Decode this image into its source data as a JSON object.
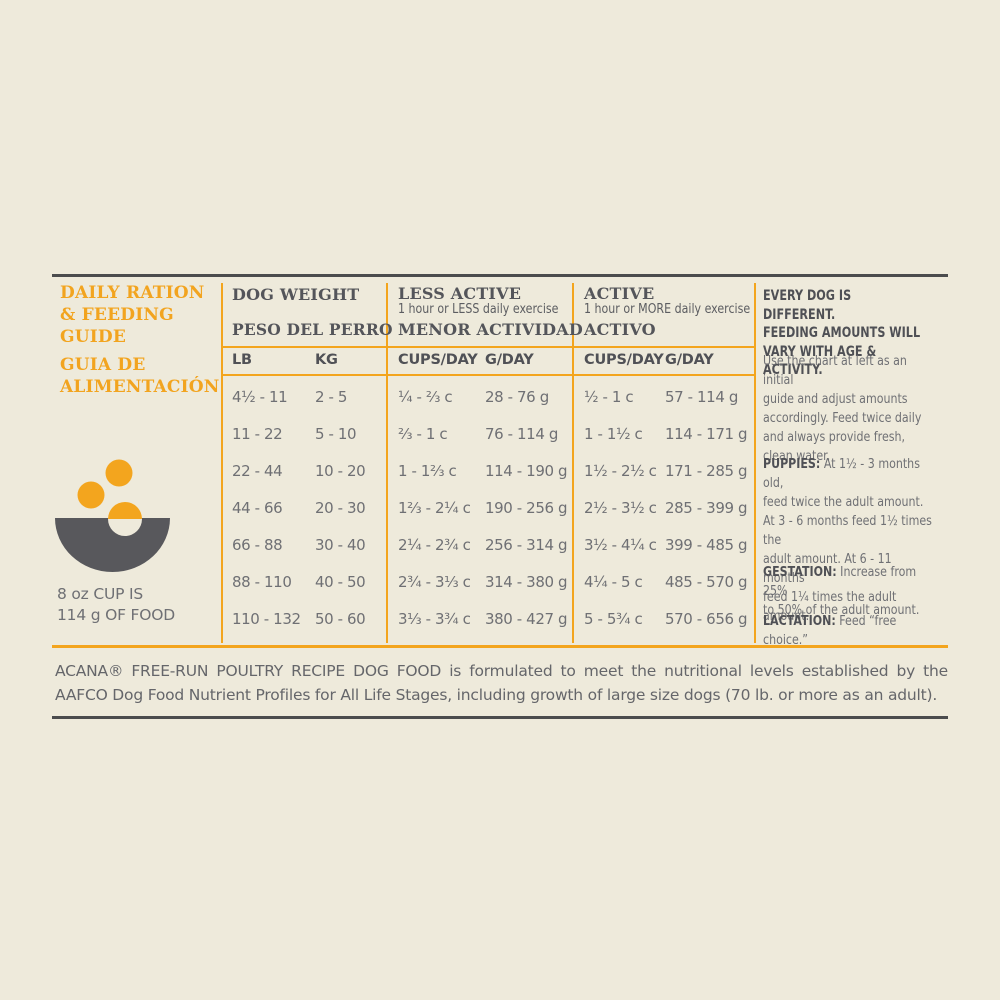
{
  "colors": {
    "background": "#eeeadb",
    "accent_orange": "#f3a51e",
    "rule_dark": "#4b4c4d",
    "heading_gray": "#54555a",
    "text_gray": "#6f7074",
    "bowl_gray": "#58585c"
  },
  "left_panel": {
    "title_en": "DAILY RATION\n& FEEDING\nGUIDE",
    "title_es": "GUIA DE\nALIMENTACIÓN",
    "bowl_icon": "bowl-with-kibble-icon",
    "cup_note": "8 oz CUP IS\n114 g OF FOOD"
  },
  "table": {
    "weight": {
      "title_en": "DOG WEIGHT",
      "title_es": "PESO DEL PERRO"
    },
    "less_active": {
      "title_en": "LESS ACTIVE",
      "subtitle": "1 hour or LESS daily exercise",
      "title_es": "MENOR ACTIVIDAD"
    },
    "active": {
      "title_en": "ACTIVE",
      "subtitle": "1 hour or MORE daily exercise",
      "title_es": "ACTIVO"
    },
    "columns": {
      "lb": "LB",
      "kg": "KG",
      "la_cups": "CUPS/DAY",
      "la_g": "G/DAY",
      "a_cups": "CUPS/DAY",
      "a_g": "G/DAY"
    },
    "rows": [
      {
        "lb": "4½ - 11",
        "kg": "2 - 5",
        "la_cups": "¼ - ⅔ c",
        "la_g": "28 - 76 g",
        "a_cups": "½ - 1 c",
        "a_g": "57 - 114 g"
      },
      {
        "lb": "11 - 22",
        "kg": "5 - 10",
        "la_cups": "⅔ - 1 c",
        "la_g": "76 - 114 g",
        "a_cups": "1 - 1½ c",
        "a_g": "114 - 171 g"
      },
      {
        "lb": "22 - 44",
        "kg": "10 - 20",
        "la_cups": "1 - 1⅔ c",
        "la_g": "114 - 190 g",
        "a_cups": "1½ - 2½ c",
        "a_g": "171 - 285 g"
      },
      {
        "lb": "44 - 66",
        "kg": "20 - 30",
        "la_cups": "1⅔ - 2¼ c",
        "la_g": "190 - 256 g",
        "a_cups": "2½ - 3½ c",
        "a_g": "285 - 399 g"
      },
      {
        "lb": "66 - 88",
        "kg": "30 - 40",
        "la_cups": "2¼ - 2¾ c",
        "la_g": "256 - 314 g",
        "a_cups": "3½ - 4¼ c",
        "a_g": "399 - 485 g"
      },
      {
        "lb": "88 - 110",
        "kg": "40 - 50",
        "la_cups": "2¾ - 3⅓ c",
        "la_g": "314 - 380 g",
        "a_cups": "4¼ - 5 c",
        "a_g": "485 - 570 g"
      },
      {
        "lb": "110 - 132",
        "kg": "50 - 60",
        "la_cups": "3⅓ - 3¾ c",
        "la_g": "380 - 427 g",
        "a_cups": "5 - 5¾ c",
        "a_g": "570 - 656 g"
      }
    ]
  },
  "right_panel": {
    "heading": "EVERY DOG IS DIFFERENT.\nFEEDING AMOUNTS WILL\nVARY WITH AGE & ACTIVITY.",
    "intro": "Use the chart at left as an initial\nguide and adjust amounts\naccordingly. Feed twice daily\nand always provide fresh,\nclean water.",
    "puppies_label": "PUPPIES:",
    "puppies_text": " At 1½ - 3 months old,\nfeed twice the adult amount.\nAt 3 - 6 months feed 1½ times the\nadult amount. At 6 - 11 months\nfeed 1¼ times the adult amount.",
    "gestation_label": "GESTATION:",
    "gestation_text": " Increase from 25%\nto 50% of the adult amount.",
    "lactation_label": "LACTATION:",
    "lactation_text": " Feed “free choice.”"
  },
  "footer": {
    "text": "ACANA® FREE-RUN POULTRY RECIPE DOG FOOD is formulated to meet the nutritional levels established by the AAFCO Dog Food Nutrient Profiles for All Life Stages, including growth of large size dogs (70 lb. or more as an adult)."
  }
}
